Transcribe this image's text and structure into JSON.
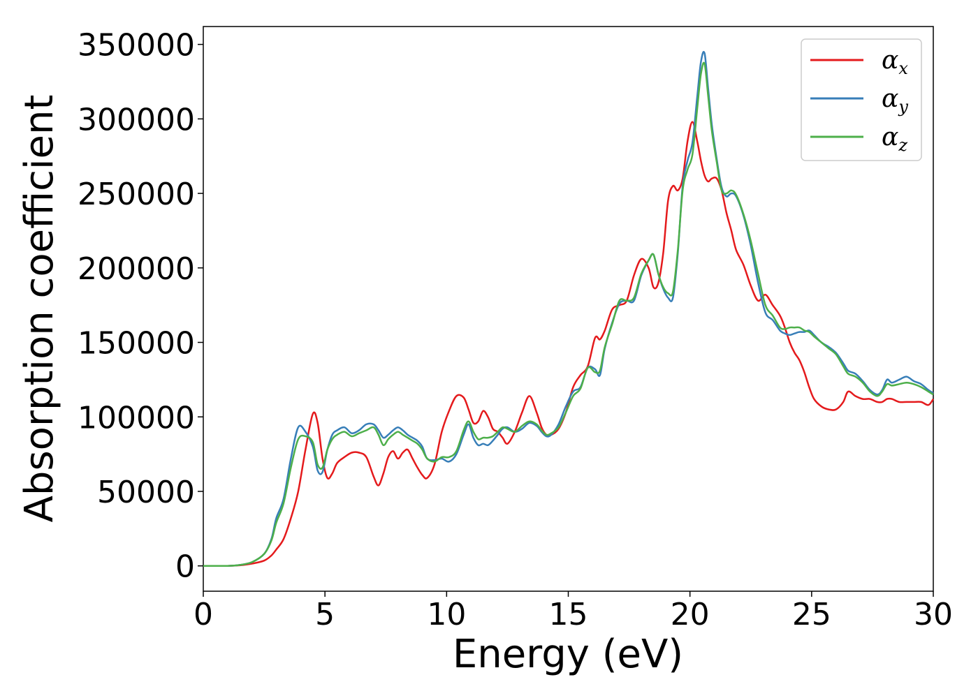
{
  "chart_data": {
    "type": "line",
    "title": "",
    "xlabel": "Energy (eV)",
    "ylabel": "Absorption coefficient",
    "xlim": [
      0,
      30
    ],
    "ylim": [
      -17000,
      362000
    ],
    "xticks": [
      0,
      5,
      10,
      15,
      20,
      25,
      30
    ],
    "yticks": [
      0,
      50000,
      100000,
      150000,
      200000,
      250000,
      300000,
      350000
    ],
    "grid": false,
    "legend_position": "top-right",
    "series": [
      {
        "name": "αx",
        "legend_symbol": "α",
        "legend_sub": "x",
        "color": "#e41a1c",
        "x": [
          0,
          1,
          1.5,
          2,
          2.5,
          2.8,
          3.0,
          3.3,
          3.6,
          3.9,
          4.2,
          4.5,
          4.7,
          4.9,
          5.1,
          5.3,
          5.5,
          5.8,
          6.1,
          6.4,
          6.7,
          7.0,
          7.2,
          7.4,
          7.6,
          7.8,
          8.0,
          8.2,
          8.4,
          8.6,
          8.8,
          9.0,
          9.2,
          9.5,
          9.8,
          10.1,
          10.4,
          10.7,
          10.9,
          11.1,
          11.3,
          11.5,
          11.7,
          11.9,
          12.1,
          12.3,
          12.5,
          12.8,
          13.1,
          13.4,
          13.7,
          13.9,
          14.1,
          14.3,
          14.6,
          14.9,
          15.2,
          15.5,
          15.8,
          16.1,
          16.3,
          16.5,
          16.8,
          17.1,
          17.4,
          17.7,
          18.0,
          18.3,
          18.5,
          18.7,
          18.9,
          19.1,
          19.3,
          19.5,
          19.7,
          19.9,
          20.1,
          20.3,
          20.45,
          20.6,
          20.75,
          20.9,
          21.1,
          21.3,
          21.5,
          21.7,
          21.9,
          22.2,
          22.5,
          22.8,
          23.1,
          23.4,
          23.7,
          23.9,
          24.1,
          24.3,
          24.5,
          24.7,
          24.9,
          25.1,
          25.4,
          25.7,
          26.0,
          26.3,
          26.5,
          26.8,
          27.1,
          27.4,
          27.7,
          27.9,
          28.1,
          28.3,
          28.6,
          28.9,
          29.2,
          29.5,
          29.8,
          30.0
        ],
        "y": [
          0,
          0,
          400,
          1500,
          3500,
          7000,
          11000,
          18000,
          32000,
          50000,
          78000,
          102000,
          96000,
          72000,
          59000,
          62000,
          69000,
          73000,
          76000,
          76000,
          73000,
          60000,
          54000,
          62000,
          73000,
          77000,
          72000,
          76000,
          78000,
          72000,
          66000,
          61000,
          59000,
          68000,
          90000,
          104000,
          114000,
          113000,
          105000,
          96000,
          97000,
          104000,
          100000,
          92000,
          90000,
          86000,
          82000,
          90000,
          103000,
          114000,
          103000,
          93000,
          88000,
          88000,
          92000,
          103000,
          120000,
          128000,
          134000,
          153000,
          152000,
          158000,
          172000,
          175000,
          178000,
          195000,
          206000,
          200000,
          187000,
          190000,
          210000,
          245000,
          255000,
          252000,
          260000,
          285000,
          298000,
          285000,
          272000,
          262000,
          258000,
          260000,
          260000,
          252000,
          237000,
          225000,
          212000,
          202000,
          188000,
          178000,
          182000,
          175000,
          168000,
          160000,
          150000,
          143000,
          138000,
          130000,
          120000,
          112000,
          107000,
          105000,
          105000,
          110000,
          117000,
          114000,
          112000,
          112000,
          110000,
          110000,
          112000,
          112000,
          110000,
          110000,
          110000,
          110000,
          108000,
          112000
        ],
        "x2": null
      },
      {
        "name": "αy",
        "legend_symbol": "α",
        "legend_sub": "y",
        "color": "#377eb8",
        "x": [
          0,
          1,
          1.5,
          2,
          2.5,
          2.8,
          3.0,
          3.3,
          3.6,
          3.9,
          4.2,
          4.5,
          4.7,
          4.9,
          5.1,
          5.3,
          5.5,
          5.8,
          6.1,
          6.4,
          6.7,
          7.0,
          7.2,
          7.4,
          7.6,
          7.8,
          8.0,
          8.2,
          8.4,
          8.6,
          8.8,
          9.0,
          9.2,
          9.5,
          9.8,
          10.1,
          10.4,
          10.7,
          10.9,
          11.1,
          11.3,
          11.5,
          11.7,
          11.9,
          12.1,
          12.3,
          12.5,
          12.8,
          13.1,
          13.4,
          13.7,
          13.9,
          14.1,
          14.3,
          14.6,
          14.9,
          15.2,
          15.5,
          15.8,
          16.1,
          16.3,
          16.5,
          16.8,
          17.1,
          17.4,
          17.7,
          18.0,
          18.3,
          18.5,
          18.7,
          18.9,
          19.1,
          19.3,
          19.5,
          19.7,
          19.9,
          20.1,
          20.3,
          20.45,
          20.6,
          20.75,
          20.9,
          21.1,
          21.3,
          21.5,
          21.7,
          21.9,
          22.2,
          22.5,
          22.8,
          23.1,
          23.4,
          23.7,
          23.9,
          24.1,
          24.3,
          24.5,
          24.7,
          24.9,
          25.1,
          25.4,
          25.7,
          26.0,
          26.3,
          26.5,
          26.8,
          27.1,
          27.4,
          27.7,
          27.9,
          28.1,
          28.3,
          28.6,
          28.9,
          29.2,
          29.5,
          29.8,
          30.0
        ],
        "y": [
          0,
          0,
          600,
          2500,
          8000,
          18000,
          32000,
          45000,
          72000,
          93000,
          90000,
          80000,
          64000,
          63000,
          78000,
          88000,
          91000,
          93000,
          89000,
          91000,
          95000,
          95000,
          91000,
          86000,
          88000,
          91000,
          93000,
          91000,
          88000,
          86000,
          84000,
          80000,
          72000,
          71000,
          72000,
          70000,
          75000,
          88000,
          95000,
          86000,
          81000,
          82000,
          81000,
          84000,
          88000,
          92000,
          93000,
          90000,
          92000,
          96000,
          94000,
          90000,
          87000,
          88000,
          95000,
          107000,
          117000,
          120000,
          133000,
          132000,
          128000,
          146000,
          163000,
          176000,
          178000,
          178000,
          195000,
          205000,
          209000,
          196000,
          186000,
          180000,
          180000,
          210000,
          255000,
          272000,
          284000,
          315000,
          338000,
          344000,
          320000,
          296000,
          273000,
          254000,
          248000,
          250000,
          248000,
          235000,
          215000,
          190000,
          170000,
          165000,
          158000,
          156000,
          155000,
          156000,
          157000,
          157000,
          158000,
          155000,
          150000,
          147000,
          143000,
          136000,
          131000,
          129000,
          124000,
          118000,
          115000,
          118000,
          125000,
          123000,
          125000,
          127000,
          124000,
          122000,
          118000,
          116000
        ],
        "x2": null
      },
      {
        "name": "αz",
        "legend_symbol": "α",
        "legend_sub": "z",
        "color": "#4daf4a",
        "x": [
          0,
          1,
          1.5,
          2,
          2.5,
          2.8,
          3.0,
          3.3,
          3.6,
          3.9,
          4.2,
          4.5,
          4.7,
          4.9,
          5.1,
          5.3,
          5.5,
          5.8,
          6.1,
          6.4,
          6.7,
          7.0,
          7.2,
          7.4,
          7.6,
          7.8,
          8.0,
          8.2,
          8.4,
          8.6,
          8.8,
          9.0,
          9.2,
          9.5,
          9.8,
          10.1,
          10.4,
          10.7,
          10.9,
          11.1,
          11.3,
          11.5,
          11.7,
          11.9,
          12.1,
          12.3,
          12.5,
          12.8,
          13.1,
          13.4,
          13.7,
          13.9,
          14.1,
          14.3,
          14.6,
          14.9,
          15.2,
          15.5,
          15.8,
          16.1,
          16.3,
          16.5,
          16.8,
          17.1,
          17.4,
          17.7,
          18.0,
          18.3,
          18.5,
          18.7,
          18.9,
          19.1,
          19.3,
          19.5,
          19.7,
          19.9,
          20.1,
          20.3,
          20.45,
          20.6,
          20.75,
          20.9,
          21.1,
          21.3,
          21.5,
          21.7,
          21.9,
          22.2,
          22.5,
          22.8,
          23.1,
          23.4,
          23.7,
          23.9,
          24.1,
          24.3,
          24.5,
          24.7,
          24.9,
          25.1,
          25.4,
          25.7,
          26.0,
          26.3,
          26.5,
          26.8,
          27.1,
          27.4,
          27.7,
          27.9,
          28.1,
          28.3,
          28.6,
          28.9,
          29.2,
          29.5,
          29.8,
          30.0
        ],
        "y": [
          0,
          0,
          600,
          2500,
          8000,
          17000,
          29000,
          42000,
          66000,
          85000,
          87000,
          83000,
          68000,
          66000,
          78000,
          85000,
          88000,
          90000,
          87000,
          89000,
          91000,
          93000,
          88000,
          81000,
          85000,
          88000,
          90000,
          88000,
          86000,
          84000,
          82000,
          78000,
          72000,
          70000,
          73000,
          73000,
          77000,
          91000,
          97000,
          90000,
          85000,
          86000,
          86000,
          87000,
          90000,
          93000,
          92000,
          90000,
          94000,
          97000,
          95000,
          91000,
          88000,
          89000,
          93000,
          103000,
          114000,
          119000,
          133000,
          130000,
          131000,
          147000,
          162000,
          178000,
          178000,
          180000,
          196000,
          205000,
          209000,
          196000,
          187000,
          183000,
          184000,
          212000,
          252000,
          266000,
          276000,
          307000,
          330000,
          337000,
          315000,
          292000,
          271000,
          252000,
          250000,
          252000,
          249000,
          236000,
          218000,
          196000,
          175000,
          168000,
          160000,
          159000,
          160000,
          160000,
          160000,
          158000,
          157000,
          154000,
          150000,
          146000,
          142000,
          134000,
          129000,
          127000,
          123000,
          117000,
          114000,
          117000,
          122000,
          121000,
          122000,
          123000,
          122000,
          120000,
          117000,
          115000
        ],
        "x2": null
      }
    ]
  }
}
